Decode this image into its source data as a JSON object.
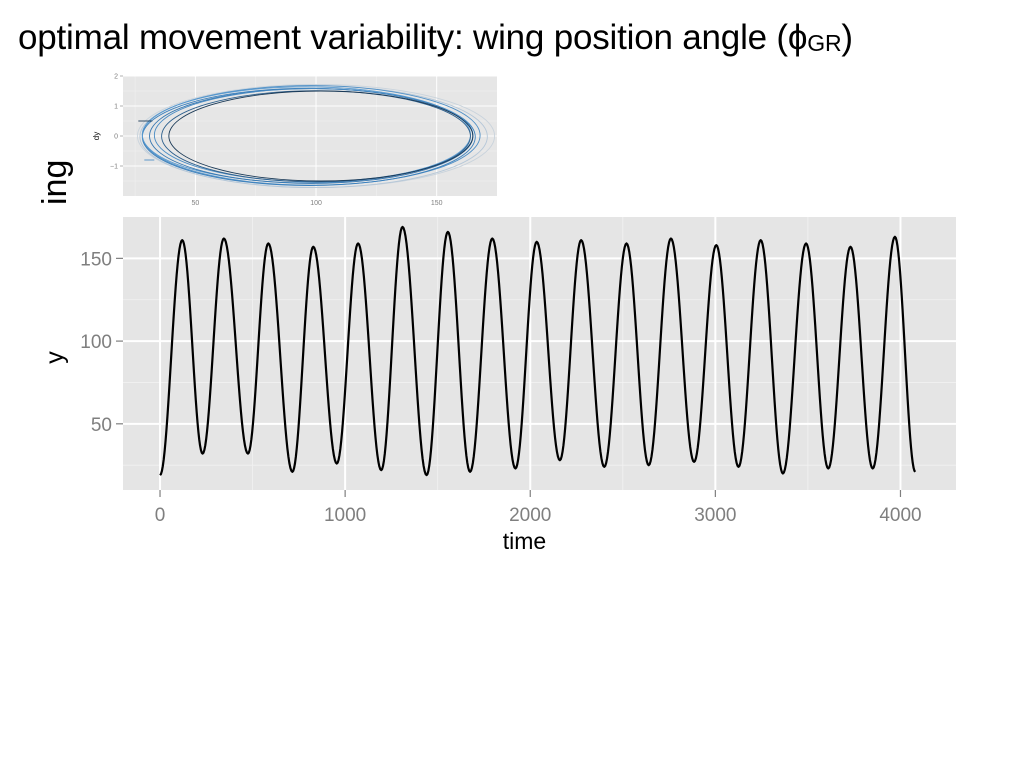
{
  "title": {
    "text": "optimal movement variability: wing position angle (",
    "symbol": "ϕ",
    "subscript": "GR",
    "close": ")"
  },
  "side_label": "ing",
  "chart_data": [
    {
      "type": "line",
      "name": "phase-portrait",
      "title": "",
      "xlabel": "",
      "ylabel": "dy",
      "xlim": [
        20,
        175
      ],
      "ylim": [
        -2,
        2
      ],
      "y_ticks": [
        -1,
        0,
        1,
        2
      ],
      "y_tick_labels": [
        "−1",
        "0",
        "1",
        "2"
      ],
      "x_ticks": [
        50,
        100,
        150
      ],
      "x_tick_labels": [
        "50",
        "100",
        "150"
      ],
      "grid": true,
      "loops": [
        {
          "cx": 100,
          "cy": 0.0,
          "rx": 74,
          "ry": 1.72,
          "color": "#c9d3dc"
        },
        {
          "cx": 99,
          "cy": -0.02,
          "rx": 72,
          "ry": 1.7,
          "color": "#b5c7d8"
        },
        {
          "cx": 98,
          "cy": 0.02,
          "rx": 70,
          "ry": 1.66,
          "color": "#4e8fc6"
        },
        {
          "cx": 97,
          "cy": -0.03,
          "rx": 69,
          "ry": 1.62,
          "color": "#3b80bd"
        },
        {
          "cx": 96,
          "cy": 0.04,
          "rx": 68,
          "ry": 1.6,
          "color": "#5a9bd1"
        },
        {
          "cx": 98,
          "cy": 0.0,
          "rx": 67,
          "ry": 1.58,
          "color": "#3576b0"
        },
        {
          "cx": 99,
          "cy": 0.03,
          "rx": 66,
          "ry": 1.55,
          "color": "#4a8cc4"
        },
        {
          "cx": 100,
          "cy": -0.01,
          "rx": 64,
          "ry": 1.52,
          "color": "#2c5f8d"
        },
        {
          "cx": 102,
          "cy": 0.0,
          "rx": 63,
          "ry": 1.5,
          "color": "#1b3a57"
        }
      ]
    },
    {
      "type": "line",
      "name": "time-series",
      "title": "",
      "xlabel": "time",
      "ylabel": "y",
      "xlim": [
        -200,
        4300
      ],
      "ylim": [
        10,
        175
      ],
      "x_ticks": [
        0,
        1000,
        2000,
        3000,
        4000
      ],
      "y_ticks": [
        50,
        100,
        150
      ],
      "grid": true,
      "color": "#000000",
      "peaks": [
        {
          "t": 120,
          "y": 161
        },
        {
          "t": 345,
          "y": 162
        },
        {
          "t": 585,
          "y": 159
        },
        {
          "t": 828,
          "y": 157
        },
        {
          "t": 1070,
          "y": 159
        },
        {
          "t": 1310,
          "y": 169
        },
        {
          "t": 1555,
          "y": 166
        },
        {
          "t": 1795,
          "y": 162
        },
        {
          "t": 2035,
          "y": 160
        },
        {
          "t": 2275,
          "y": 161
        },
        {
          "t": 2520,
          "y": 159
        },
        {
          "t": 2760,
          "y": 162
        },
        {
          "t": 3005,
          "y": 158
        },
        {
          "t": 3245,
          "y": 161
        },
        {
          "t": 3490,
          "y": 159
        },
        {
          "t": 3730,
          "y": 157
        },
        {
          "t": 3970,
          "y": 163
        }
      ],
      "troughs": [
        {
          "t": 0,
          "y": 19
        },
        {
          "t": 230,
          "y": 32
        },
        {
          "t": 475,
          "y": 32
        },
        {
          "t": 715,
          "y": 21
        },
        {
          "t": 955,
          "y": 26
        },
        {
          "t": 1195,
          "y": 22
        },
        {
          "t": 1440,
          "y": 19
        },
        {
          "t": 1675,
          "y": 21
        },
        {
          "t": 1920,
          "y": 23
        },
        {
          "t": 2160,
          "y": 28
        },
        {
          "t": 2400,
          "y": 24
        },
        {
          "t": 2640,
          "y": 25
        },
        {
          "t": 2885,
          "y": 27
        },
        {
          "t": 3125,
          "y": 24
        },
        {
          "t": 3365,
          "y": 20
        },
        {
          "t": 3610,
          "y": 23
        },
        {
          "t": 3850,
          "y": 23
        },
        {
          "t": 4080,
          "y": 21
        }
      ]
    }
  ]
}
